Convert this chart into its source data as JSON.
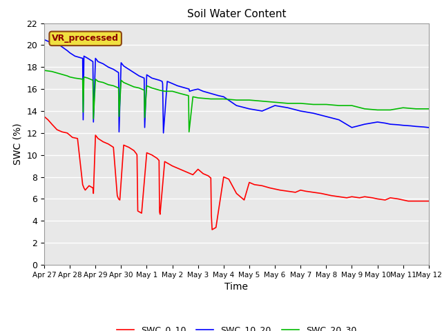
{
  "title": "Soil Water Content",
  "xlabel": "Time",
  "ylabel": "SWC (%)",
  "annotation": "VR_processed",
  "ylim": [
    0,
    22
  ],
  "yticks": [
    0,
    2,
    4,
    6,
    8,
    10,
    12,
    14,
    16,
    18,
    20,
    22
  ],
  "fig_bg_color": "#ffffff",
  "plot_bg_color": "#e8e8e8",
  "legend_entries": [
    "SWC_0_10",
    "SWC_10_20",
    "SWC_20_30"
  ],
  "line_colors": [
    "#ff0000",
    "#0000ff",
    "#00bb00"
  ],
  "line_width": 1.2,
  "swc_0_10": {
    "x_days": [
      0,
      0.15,
      0.3,
      0.5,
      0.7,
      0.9,
      1.0,
      1.1,
      1.3,
      1.5,
      1.55,
      1.6,
      1.75,
      1.9,
      1.92,
      2.0,
      2.1,
      2.3,
      2.5,
      2.7,
      2.85,
      2.9,
      2.95,
      3.1,
      3.3,
      3.5,
      3.6,
      3.62,
      3.65,
      3.8,
      4.0,
      4.2,
      4.4,
      4.48,
      4.5,
      4.52,
      4.7,
      5.0,
      5.2,
      5.4,
      5.6,
      5.8,
      6.0,
      6.1,
      6.2,
      6.4,
      6.5,
      6.52,
      6.55,
      6.7,
      7.0,
      7.2,
      7.5,
      7.8,
      8.0,
      8.2,
      8.5,
      8.8,
      9.0,
      9.2,
      9.5,
      9.8,
      10.0,
      10.2,
      10.5,
      10.8,
      11.0,
      11.2,
      11.5,
      11.8,
      12.0,
      12.3,
      12.5,
      12.8,
      13.0,
      13.3,
      13.5,
      13.8,
      14.0,
      14.2,
      14.4,
      14.6,
      14.8,
      15.0
    ],
    "y": [
      13.5,
      13.2,
      12.8,
      12.3,
      12.1,
      12.0,
      11.8,
      11.6,
      11.5,
      7.3,
      7.0,
      6.8,
      7.2,
      7.0,
      6.5,
      11.8,
      11.5,
      11.2,
      11.0,
      10.7,
      6.3,
      6.0,
      5.9,
      10.9,
      10.7,
      10.4,
      10.1,
      10.0,
      4.9,
      4.7,
      10.2,
      10.0,
      9.7,
      9.5,
      4.8,
      4.6,
      9.4,
      9.0,
      8.8,
      8.6,
      8.4,
      8.2,
      8.7,
      8.5,
      8.3,
      8.1,
      7.9,
      4.5,
      3.2,
      3.4,
      8.0,
      7.8,
      6.5,
      5.9,
      7.5,
      7.3,
      7.2,
      7.0,
      6.9,
      6.8,
      6.7,
      6.6,
      6.8,
      6.7,
      6.6,
      6.5,
      6.4,
      6.3,
      6.2,
      6.1,
      6.2,
      6.1,
      6.2,
      6.1,
      6.0,
      5.9,
      6.1,
      6.0,
      5.9,
      5.8,
      5.8,
      5.8,
      5.8,
      5.8
    ]
  },
  "swc_10_20": {
    "x_days": [
      0,
      0.3,
      0.6,
      0.9,
      1.0,
      1.2,
      1.5,
      1.52,
      1.55,
      1.7,
      1.9,
      1.92,
      2.0,
      2.1,
      2.3,
      2.5,
      2.7,
      2.9,
      2.92,
      3.0,
      3.1,
      3.3,
      3.5,
      3.7,
      3.9,
      3.92,
      4.0,
      4.2,
      4.5,
      4.6,
      4.62,
      4.65,
      4.8,
      5.0,
      5.2,
      5.5,
      5.65,
      5.67,
      5.8,
      6.0,
      6.2,
      6.5,
      6.8,
      7.0,
      7.5,
      8.0,
      8.5,
      9.0,
      9.5,
      10.0,
      10.5,
      11.0,
      11.5,
      12.0,
      12.5,
      13.0,
      13.3,
      13.5,
      13.8,
      14.0,
      14.3,
      14.5,
      14.8,
      15.0
    ],
    "y": [
      20.5,
      20.2,
      20.0,
      19.5,
      19.3,
      19.0,
      18.8,
      13.2,
      19.0,
      18.8,
      18.5,
      13.0,
      18.8,
      18.5,
      18.3,
      18.0,
      17.8,
      17.5,
      12.1,
      18.4,
      18.1,
      17.8,
      17.5,
      17.2,
      17.0,
      12.5,
      17.3,
      17.0,
      16.8,
      16.7,
      16.5,
      12.0,
      16.7,
      16.5,
      16.3,
      16.1,
      16.0,
      15.8,
      15.9,
      16.0,
      15.8,
      15.6,
      15.4,
      15.3,
      14.5,
      14.2,
      14.0,
      14.5,
      14.3,
      14.0,
      13.8,
      13.5,
      13.2,
      12.5,
      12.8,
      13.0,
      12.9,
      12.8,
      12.75,
      12.7,
      12.65,
      12.6,
      12.55,
      12.5
    ]
  },
  "swc_20_30": {
    "x_days": [
      0,
      0.3,
      0.6,
      0.9,
      1.0,
      1.2,
      1.5,
      1.52,
      1.55,
      1.7,
      1.9,
      1.92,
      2.0,
      2.1,
      2.3,
      2.5,
      2.7,
      2.9,
      2.92,
      3.0,
      3.1,
      3.3,
      3.5,
      3.7,
      3.9,
      3.92,
      4.0,
      4.2,
      4.5,
      4.7,
      5.0,
      5.3,
      5.63,
      5.65,
      5.8,
      6.0,
      6.5,
      7.0,
      7.5,
      8.0,
      8.5,
      9.0,
      9.5,
      10.0,
      10.5,
      11.0,
      11.5,
      12.0,
      12.5,
      13.0,
      13.5,
      14.0,
      14.5,
      15.0
    ],
    "y": [
      17.7,
      17.6,
      17.4,
      17.2,
      17.1,
      17.0,
      16.9,
      13.9,
      17.1,
      17.0,
      16.8,
      13.3,
      16.9,
      16.7,
      16.6,
      16.4,
      16.3,
      16.1,
      13.5,
      16.8,
      16.6,
      16.4,
      16.2,
      16.1,
      15.9,
      13.4,
      16.3,
      16.1,
      15.9,
      15.8,
      15.8,
      15.6,
      15.4,
      12.1,
      15.3,
      15.2,
      15.1,
      15.1,
      15.0,
      15.0,
      14.9,
      14.8,
      14.7,
      14.7,
      14.6,
      14.6,
      14.5,
      14.5,
      14.2,
      14.1,
      14.1,
      14.3,
      14.2,
      14.2
    ]
  },
  "x_tick_days": [
    0,
    1,
    2,
    3,
    4,
    5,
    6,
    7,
    8,
    9,
    10,
    11,
    12,
    13,
    14,
    15
  ],
  "x_tick_labels": [
    "Apr 27",
    "Apr 28",
    "Apr 29",
    "Apr 30",
    "May 1",
    "May 2",
    "May 3",
    "May 4",
    "May 5",
    "May 6",
    "May 7",
    "May 8",
    "May 9",
    "May 10",
    "May 11",
    "May 12"
  ]
}
